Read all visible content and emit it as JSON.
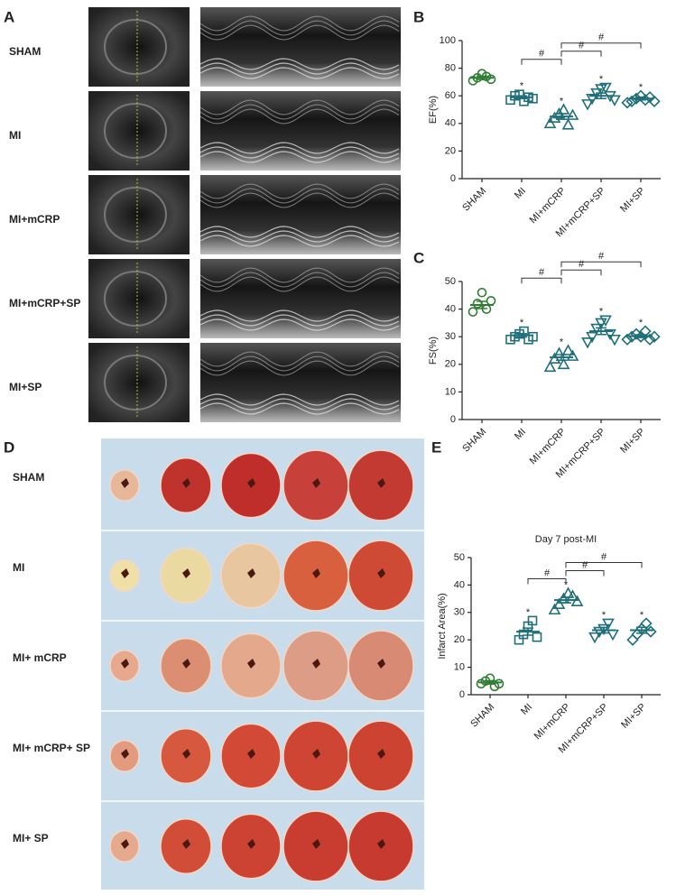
{
  "panels": {
    "a": "A",
    "b": "B",
    "c": "C",
    "d": "D",
    "e": "E"
  },
  "echo_rows": [
    "SHAM",
    "MI",
    "MI+mCRP",
    "MI+mCRP+SP",
    "MI+SP"
  ],
  "tissue_rows": [
    "SHAM",
    "MI",
    "MI+ mCRP",
    "MI+ mCRP+ SP",
    "MI+ SP"
  ],
  "chart_data": [
    {
      "type": "dot",
      "ylabel": "EF(%)",
      "ylim": [
        0,
        100
      ],
      "yticks": [
        0,
        20,
        40,
        60,
        80,
        100
      ],
      "groups": [
        {
          "name": "SHAM",
          "color": "#2e7d32",
          "marker": "circle",
          "values": [
            71,
            73,
            76,
            74,
            72
          ],
          "mean": 73,
          "sem": 1.2
        },
        {
          "name": "MI",
          "color": "#1f6f7a",
          "marker": "square",
          "values": [
            57,
            60,
            61,
            56,
            59,
            58
          ],
          "mean": 59,
          "sem": 1,
          "star": "*"
        },
        {
          "name": "MI+mCRP",
          "color": "#1f6f7a",
          "marker": "triangle",
          "values": [
            40,
            44,
            47,
            50,
            39,
            46
          ],
          "mean": 45,
          "sem": 2,
          "star": "*"
        },
        {
          "name": "MI+mCRP+SP",
          "color": "#1f6f7a",
          "marker": "triangle-down",
          "values": [
            54,
            58,
            62,
            65,
            66,
            60,
            57
          ],
          "mean": 60,
          "sem": 2,
          "star": "*"
        },
        {
          "name": "MI+SP",
          "color": "#1f6f7a",
          "marker": "diamond",
          "values": [
            55,
            56,
            58,
            60,
            57,
            59,
            56
          ],
          "mean": 58,
          "sem": 1,
          "star": "*"
        }
      ],
      "comparisons": [
        {
          "from": "MI",
          "to": "MI+mCRP",
          "label": "#"
        },
        {
          "from": "MI+mCRP",
          "to": "MI+mCRP+SP",
          "label": "#"
        },
        {
          "from": "MI+mCRP",
          "to": "MI+SP",
          "label": "#"
        }
      ]
    },
    {
      "type": "dot",
      "ylabel": "FS(%)",
      "ylim": [
        0,
        50
      ],
      "yticks": [
        0,
        10,
        20,
        30,
        40,
        50
      ],
      "groups": [
        {
          "name": "SHAM",
          "color": "#2e7d32",
          "marker": "circle",
          "values": [
            39,
            42,
            46,
            40,
            43
          ],
          "mean": 41.5,
          "sem": 1.3
        },
        {
          "name": "MI",
          "color": "#1f6f7a",
          "marker": "square",
          "values": [
            29,
            30,
            31,
            32,
            29,
            30
          ],
          "mean": 30.5,
          "sem": 0.6,
          "star": "*"
        },
        {
          "name": "MI+mCRP",
          "color": "#1f6f7a",
          "marker": "triangle",
          "values": [
            19,
            22,
            24,
            20,
            25,
            23
          ],
          "mean": 22.5,
          "sem": 1,
          "star": "*"
        },
        {
          "name": "MI+mCRP+SP",
          "color": "#1f6f7a",
          "marker": "triangle-down",
          "values": [
            28,
            30,
            33,
            35,
            36,
            31,
            29
          ],
          "mean": 32,
          "sem": 1.2,
          "star": "*"
        },
        {
          "name": "MI+SP",
          "color": "#1f6f7a",
          "marker": "diamond",
          "values": [
            29,
            30,
            31,
            30,
            32,
            29,
            30
          ],
          "mean": 30.2,
          "sem": 0.5,
          "star": "*"
        }
      ],
      "comparisons": [
        {
          "from": "MI",
          "to": "MI+mCRP",
          "label": "#"
        },
        {
          "from": "MI+mCRP",
          "to": "MI+mCRP+SP",
          "label": "#"
        },
        {
          "from": "MI+mCRP",
          "to": "MI+SP",
          "label": "#"
        }
      ]
    },
    {
      "type": "dot",
      "title": "Day 7 post-MI",
      "ylabel": "Infarct Area(%)",
      "ylim": [
        0,
        50
      ],
      "yticks": [
        0,
        10,
        20,
        30,
        40,
        50
      ],
      "groups": [
        {
          "name": "SHAM",
          "color": "#2e7d32",
          "marker": "circle",
          "values": [
            4,
            5,
            6,
            3,
            4
          ],
          "mean": 4.5,
          "sem": 0.6
        },
        {
          "name": "MI",
          "color": "#1f6f7a",
          "marker": "square",
          "values": [
            20,
            22,
            25,
            27,
            21
          ],
          "mean": 23,
          "sem": 1.3,
          "star": "*"
        },
        {
          "name": "MI+mCRP",
          "color": "#1f6f7a",
          "marker": "triangle",
          "values": [
            31,
            33,
            35,
            37,
            36,
            34
          ],
          "mean": 34.5,
          "sem": 1,
          "star": "*"
        },
        {
          "name": "MI+mCRP+SP",
          "color": "#1f6f7a",
          "marker": "triangle-down",
          "values": [
            21,
            23,
            24,
            26,
            22
          ],
          "mean": 23.5,
          "sem": 1,
          "star": "*"
        },
        {
          "name": "MI+SP",
          "color": "#1f6f7a",
          "marker": "diamond",
          "values": [
            20,
            22,
            24,
            26,
            23
          ],
          "mean": 23.5,
          "sem": 1.1,
          "star": "*"
        }
      ],
      "comparisons": [
        {
          "from": "MI",
          "to": "MI+mCRP",
          "label": "#"
        },
        {
          "from": "MI+mCRP",
          "to": "MI+mCRP+SP",
          "label": "#"
        },
        {
          "from": "MI+mCRP",
          "to": "MI+SP",
          "label": "#"
        }
      ]
    }
  ]
}
